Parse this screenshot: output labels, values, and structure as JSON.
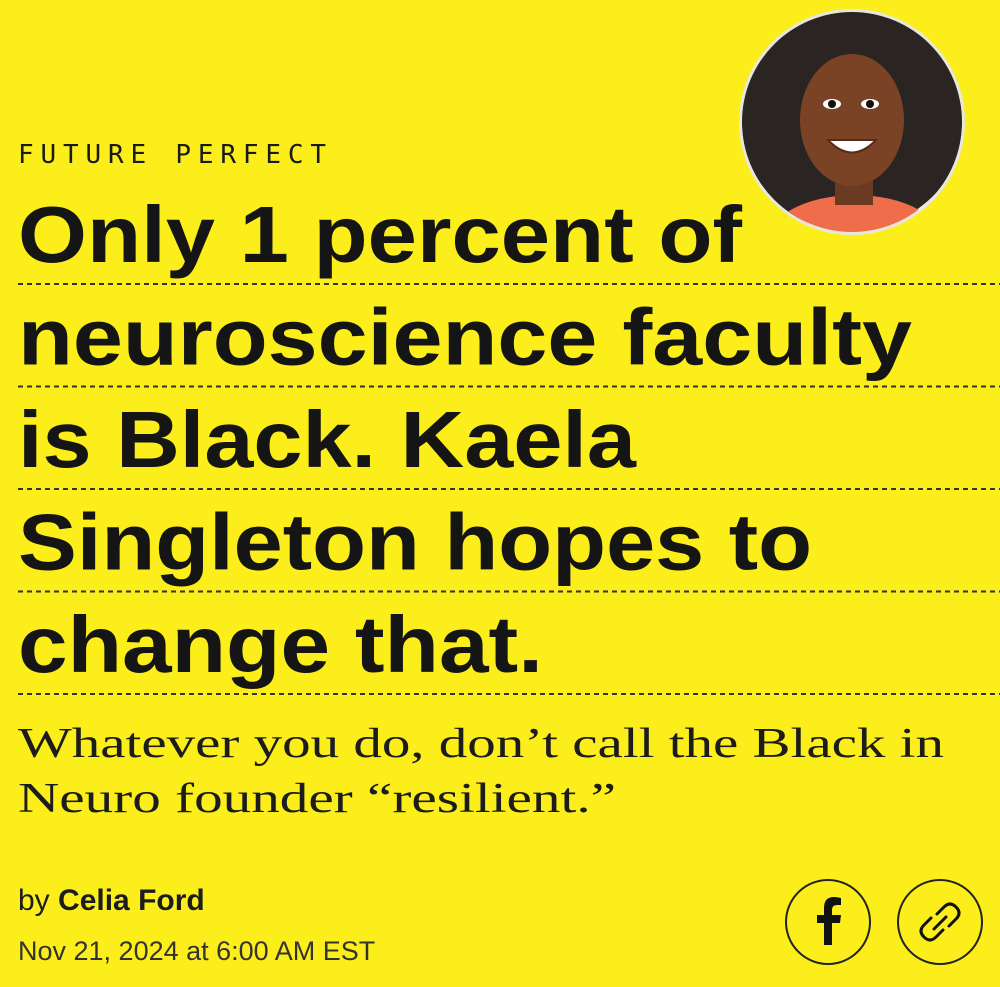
{
  "section": "FUTURE PERFECT",
  "headline": {
    "lines": [
      "Only 1 percent of",
      "neuroscience faculty",
      "is Black. Kaela",
      "Singleton hopes to",
      "change that."
    ]
  },
  "dek": {
    "lines": [
      "Whatever you do, don’t call the Black in",
      "Neuro founder “resilient.”"
    ]
  },
  "byline": {
    "prefix": "by",
    "author": "Celia Ford"
  },
  "date": "Nov 21, 2024 at 6:00 AM EST"
}
